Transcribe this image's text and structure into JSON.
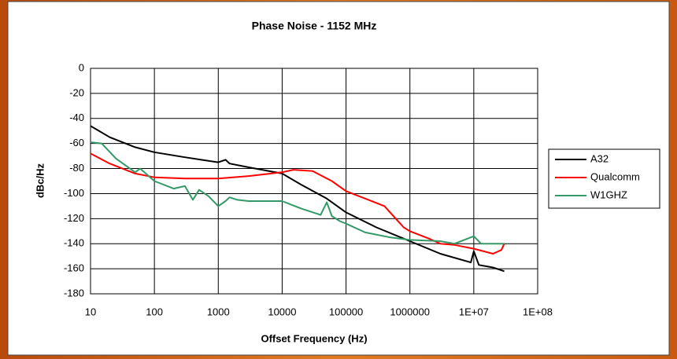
{
  "chart_data": {
    "type": "line",
    "title": "Phase Noise - 1152 MHz",
    "x_label": "Offset Frequency (Hz)",
    "y_label": "dBc/Hz",
    "log_x": true,
    "grid": true,
    "legend": "right",
    "xlim": [
      10,
      100000000
    ],
    "xticks": [
      10,
      100,
      1000,
      10000,
      100000,
      1000000,
      {
        "value": 10000000,
        "label": "1E+07"
      },
      {
        "value": 100000000,
        "label": "1E+08"
      }
    ],
    "ylim": [
      -180,
      0
    ],
    "yticks": [
      0,
      -20,
      -40,
      -60,
      -80,
      -100,
      -120,
      -140,
      -160,
      -180
    ],
    "series": [
      {
        "name": "A32",
        "color": "#000000",
        "x": [
          10,
          20,
          50,
          100,
          300,
          1000,
          1300,
          1500,
          3000,
          10000,
          20000,
          50000,
          100000,
          300000,
          1000000,
          3000000,
          9000000,
          10000000,
          12000000,
          20000000,
          30000000
        ],
        "values": [
          -46,
          -55,
          -63,
          -67,
          -71,
          -75,
          -73,
          -76,
          -79,
          -84,
          -93,
          -104,
          -115,
          -127,
          -138,
          -148,
          -155,
          -146,
          -157,
          -159,
          -162
        ]
      },
      {
        "name": "Qualcomm",
        "color": "#ff0000",
        "x": [
          10,
          20,
          50,
          100,
          300,
          1000,
          3000,
          10000,
          15000,
          30000,
          60000,
          100000,
          200000,
          400000,
          600000,
          800000,
          1000000,
          2000000,
          3000000,
          5000000,
          10000000,
          20000000,
          27000000,
          30000000
        ],
        "values": [
          -68,
          -76,
          -84,
          -87,
          -88,
          -88,
          -86,
          -83,
          -81,
          -82,
          -90,
          -98,
          -104,
          -110,
          -120,
          -127,
          -130,
          -136,
          -140,
          -141,
          -144,
          -148,
          -145,
          -140
        ]
      },
      {
        "name": "W1GHZ",
        "color": "#339966",
        "x": [
          10,
          15,
          25,
          50,
          60,
          100,
          200,
          300,
          400,
          500,
          700,
          1000,
          1300,
          1500,
          2000,
          3000,
          10000,
          20000,
          40000,
          50000,
          60000,
          80000,
          100000,
          200000,
          500000,
          1000000,
          3000000,
          5000000,
          10000000,
          13000000,
          30000000
        ],
        "values": [
          -59,
          -60,
          -72,
          -83,
          -80,
          -90,
          -96,
          -94,
          -105,
          -97,
          -102,
          -110,
          -106,
          -103,
          -105,
          -106,
          -106,
          -112,
          -117,
          -107,
          -118,
          -122,
          -124,
          -131,
          -135,
          -137,
          -138,
          -140,
          -134,
          -140,
          -140
        ]
      }
    ]
  }
}
